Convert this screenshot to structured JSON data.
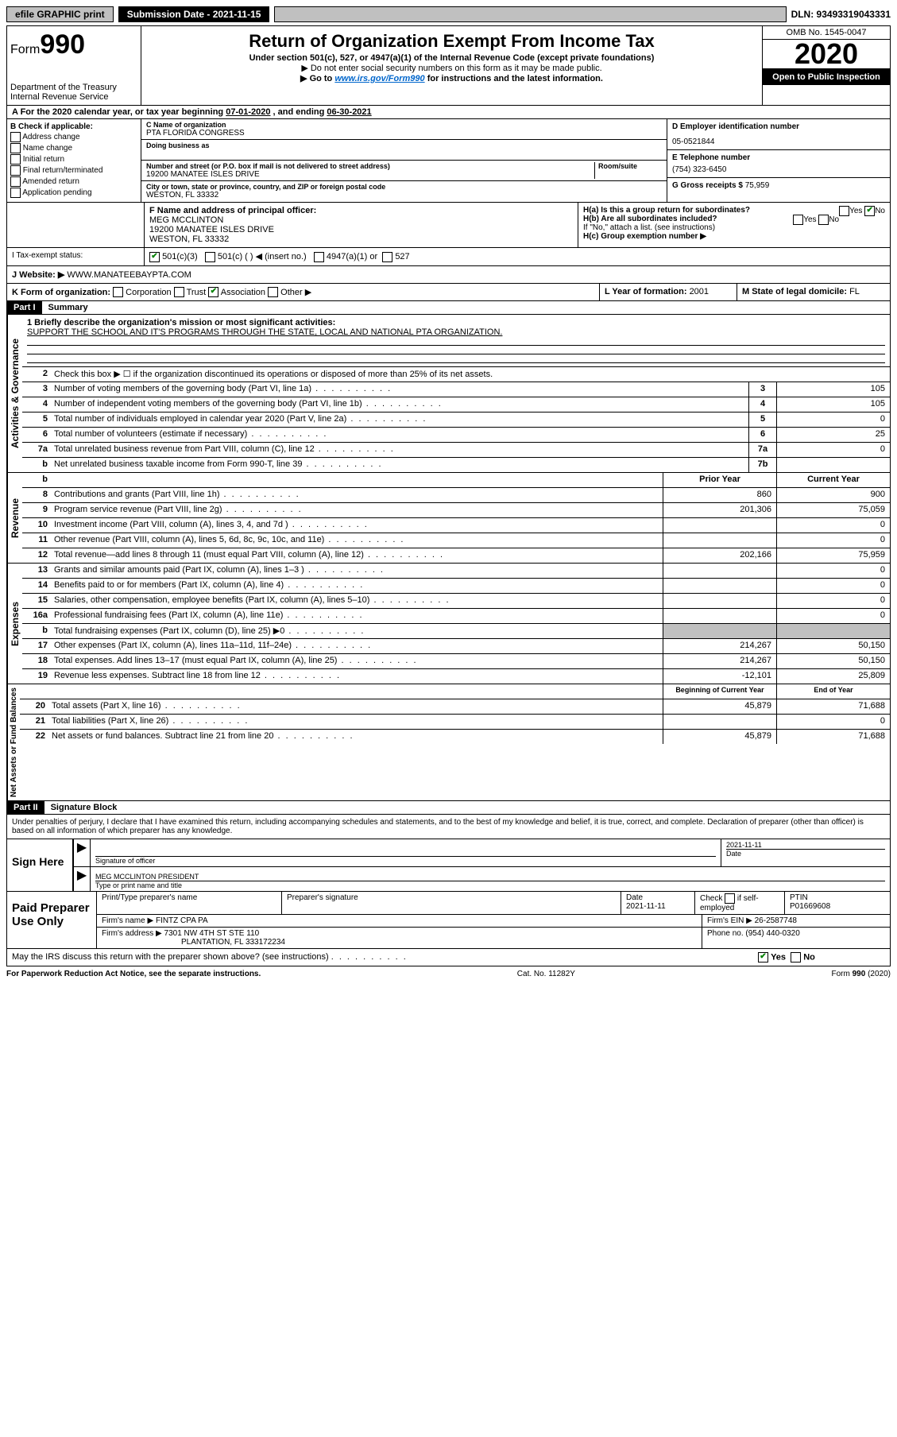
{
  "topbar": {
    "efile": "efile GRAPHIC print",
    "submission_label": "Submission Date - 2021-11-15",
    "dln_label": "DLN: 93493319043331"
  },
  "header": {
    "form_prefix": "Form",
    "form_number": "990",
    "dept": "Department of the Treasury",
    "irs": "Internal Revenue Service",
    "title": "Return of Organization Exempt From Income Tax",
    "subtitle": "Under section 501(c), 527, or 4947(a)(1) of the Internal Revenue Code (except private foundations)",
    "line1": "▶ Do not enter social security numbers on this form as it may be made public.",
    "line2a": "▶ Go to ",
    "line2_link": "www.irs.gov/Form990",
    "line2b": " for instructions and the latest information.",
    "omb": "OMB No. 1545-0047",
    "year": "2020",
    "open_public": "Open to Public Inspection"
  },
  "row_a": {
    "text_a": "A For the 2020 calendar year, or tax year beginning ",
    "begin": "07-01-2020",
    "text_b": " , and ending ",
    "end": "06-30-2021"
  },
  "section_b": {
    "header": "B Check if applicable:",
    "opts": [
      "Address change",
      "Name change",
      "Initial return",
      "Final return/terminated",
      "Amended return",
      "Application pending"
    ]
  },
  "section_c": {
    "name_label": "C Name of organization",
    "name": "PTA FLORIDA CONGRESS",
    "dba_label": "Doing business as",
    "addr_label": "Number and street (or P.O. box if mail is not delivered to street address)",
    "room_label": "Room/suite",
    "addr": "19200 MANATEE ISLES DRIVE",
    "city_label": "City or town, state or province, country, and ZIP or foreign postal code",
    "city": "WESTON, FL  33332"
  },
  "section_d": {
    "ein_label": "D Employer identification number",
    "ein": "05-0521844",
    "phone_label": "E Telephone number",
    "phone": "(754) 323-6450",
    "gross_label": "G Gross receipts $ ",
    "gross": "75,959"
  },
  "section_f": {
    "label": "F Name and address of principal officer:",
    "name": "MEG MCCLINTON",
    "addr1": "19200 MANATEE ISLES DRIVE",
    "addr2": "WESTON, FL  33332"
  },
  "section_h": {
    "ha": "H(a)  Is this a group return for subordinates?",
    "hb": "H(b)  Are all subordinates included?",
    "hb_note": "If \"No,\" attach a list. (see instructions)",
    "hc": "H(c)  Group exemption number ▶",
    "yes": "Yes",
    "no": "No"
  },
  "section_i": {
    "label": "I  Tax-exempt status:",
    "o1": "501(c)(3)",
    "o2": "501(c) (  ) ◀ (insert no.)",
    "o3": "4947(a)(1) or",
    "o4": "527"
  },
  "section_j": {
    "label": "J   Website: ▶",
    "value": "WWW.MANATEEBAYPTA.COM"
  },
  "section_k": {
    "label": "K Form of organization:",
    "o1": "Corporation",
    "o2": "Trust",
    "o3": "Association",
    "o4": "Other ▶"
  },
  "section_l": {
    "label": "L Year of formation: ",
    "value": "2001"
  },
  "section_m": {
    "label": "M State of legal domicile: ",
    "value": "FL"
  },
  "part1": {
    "tag": "Part I",
    "title": "Summary",
    "line1_label": "1  Briefly describe the organization's mission or most significant activities:",
    "line1_value": "SUPPORT THE SCHOOL AND IT'S PROGRAMS THROUGH THE STATE, LOCAL AND NATIONAL PTA ORGANIZATION.",
    "line2": "Check this box ▶ ☐ if the organization discontinued its operations or disposed of more than 25% of its net assets.",
    "sidebar_gov": "Activities & Governance",
    "sidebar_rev": "Revenue",
    "sidebar_exp": "Expenses",
    "sidebar_net": "Net Assets or Fund Balances",
    "rows_gov": [
      {
        "n": "3",
        "d": "Number of voting members of the governing body (Part VI, line 1a)",
        "c": "3",
        "v": "105"
      },
      {
        "n": "4",
        "d": "Number of independent voting members of the governing body (Part VI, line 1b)",
        "c": "4",
        "v": "105"
      },
      {
        "n": "5",
        "d": "Total number of individuals employed in calendar year 2020 (Part V, line 2a)",
        "c": "5",
        "v": "0"
      },
      {
        "n": "6",
        "d": "Total number of volunteers (estimate if necessary)",
        "c": "6",
        "v": "25"
      },
      {
        "n": "7a",
        "d": "Total unrelated business revenue from Part VIII, column (C), line 12",
        "c": "7a",
        "v": "0"
      },
      {
        "n": "b",
        "d": "Net unrelated business taxable income from Form 990-T, line 39",
        "c": "7b",
        "v": ""
      }
    ],
    "header_prior": "Prior Year",
    "header_current": "Current Year",
    "rows_rev": [
      {
        "n": "8",
        "d": "Contributions and grants (Part VIII, line 1h)",
        "p": "860",
        "c": "900"
      },
      {
        "n": "9",
        "d": "Program service revenue (Part VIII, line 2g)",
        "p": "201,306",
        "c": "75,059"
      },
      {
        "n": "10",
        "d": "Investment income (Part VIII, column (A), lines 3, 4, and 7d )",
        "p": "",
        "c": "0"
      },
      {
        "n": "11",
        "d": "Other revenue (Part VIII, column (A), lines 5, 6d, 8c, 9c, 10c, and 11e)",
        "p": "",
        "c": "0"
      },
      {
        "n": "12",
        "d": "Total revenue—add lines 8 through 11 (must equal Part VIII, column (A), line 12)",
        "p": "202,166",
        "c": "75,959"
      }
    ],
    "rows_exp": [
      {
        "n": "13",
        "d": "Grants and similar amounts paid (Part IX, column (A), lines 1–3 )",
        "p": "",
        "c": "0"
      },
      {
        "n": "14",
        "d": "Benefits paid to or for members (Part IX, column (A), line 4)",
        "p": "",
        "c": "0"
      },
      {
        "n": "15",
        "d": "Salaries, other compensation, employee benefits (Part IX, column (A), lines 5–10)",
        "p": "",
        "c": "0"
      },
      {
        "n": "16a",
        "d": "Professional fundraising fees (Part IX, column (A), line 11e)",
        "p": "",
        "c": "0"
      },
      {
        "n": "b",
        "d": "Total fundraising expenses (Part IX, column (D), line 25) ▶0",
        "p": "GRAY",
        "c": "GRAY"
      },
      {
        "n": "17",
        "d": "Other expenses (Part IX, column (A), lines 11a–11d, 11f–24e)",
        "p": "214,267",
        "c": "50,150"
      },
      {
        "n": "18",
        "d": "Total expenses. Add lines 13–17 (must equal Part IX, column (A), line 25)",
        "p": "214,267",
        "c": "50,150"
      },
      {
        "n": "19",
        "d": "Revenue less expenses. Subtract line 18 from line 12",
        "p": "-12,101",
        "c": "25,809"
      }
    ],
    "header_begin": "Beginning of Current Year",
    "header_end": "End of Year",
    "rows_net": [
      {
        "n": "20",
        "d": "Total assets (Part X, line 16)",
        "p": "45,879",
        "c": "71,688"
      },
      {
        "n": "21",
        "d": "Total liabilities (Part X, line 26)",
        "p": "",
        "c": "0"
      },
      {
        "n": "22",
        "d": "Net assets or fund balances. Subtract line 21 from line 20",
        "p": "45,879",
        "c": "71,688"
      }
    ]
  },
  "part2": {
    "tag": "Part II",
    "title": "Signature Block",
    "declaration": "Under penalties of perjury, I declare that I have examined this return, including accompanying schedules and statements, and to the best of my knowledge and belief, it is true, correct, and complete. Declaration of preparer (other than officer) is based on all information of which preparer has any knowledge."
  },
  "sign": {
    "label": "Sign Here",
    "sig_officer": "Signature of officer",
    "date_label": "Date",
    "date": "2021-11-11",
    "name": "MEG MCCLINTON  PRESIDENT",
    "name_label": "Type or print name and title"
  },
  "prep": {
    "label": "Paid Preparer Use Only",
    "h1": "Print/Type preparer's name",
    "h2": "Preparer's signature",
    "h3": "Date",
    "date": "2021-11-11",
    "h4a": "Check",
    "h4b": "if self-employed",
    "h5": "PTIN",
    "ptin": "P01669608",
    "firm_label": "Firm's name    ▶",
    "firm": "FINTZ CPA PA",
    "ein_label": "Firm's EIN ▶",
    "ein": "26-2587748",
    "addr_label": "Firm's address ▶",
    "addr1": "7301 NW 4TH ST STE 110",
    "addr2": "PLANTATION, FL  333172234",
    "phone_label": "Phone no. ",
    "phone": "(954) 440-0320"
  },
  "discuss": {
    "text": "May the IRS discuss this return with the preparer shown above? (see instructions)",
    "yes": "Yes",
    "no": "No"
  },
  "footer": {
    "left": "For Paperwork Reduction Act Notice, see the separate instructions.",
    "center": "Cat. No. 11282Y",
    "right": "Form 990 (2020)"
  }
}
